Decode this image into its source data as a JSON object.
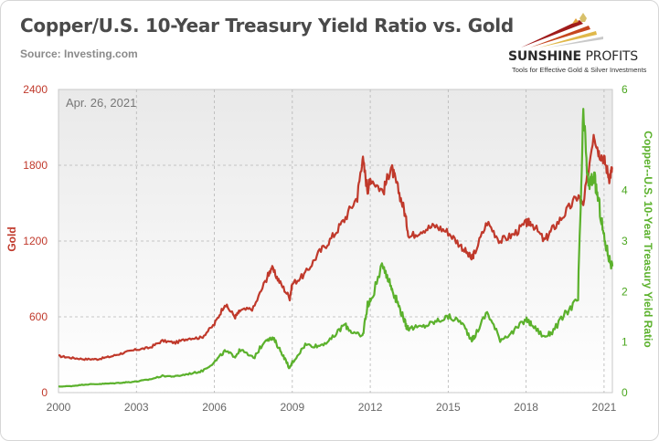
{
  "header": {
    "title": "Copper/U.S. 10-Year Treasury Yield Ratio vs. Gold",
    "source": "Source: Investing.com"
  },
  "logo": {
    "name_bold": "SUNSHINE",
    "name_thin": "PROFITS",
    "tagline": "Tools for Effective Gold & Silver Investments"
  },
  "colors": {
    "gold": "#c0392b",
    "ratio": "#5bb12c",
    "plot_bg_top": "#e9e9e9",
    "plot_bg_bottom": "#ffffff"
  },
  "chart_data": {
    "type": "line",
    "annotation": "Apr. 26, 2021",
    "xlabel": "",
    "x_ticks": [
      "2000",
      "2003",
      "2006",
      "2009",
      "2012",
      "2015",
      "2018",
      "2021"
    ],
    "xlim": [
      2000,
      2021.32
    ],
    "y_left": {
      "label": "Gold",
      "ylim": [
        0,
        2400
      ],
      "ticks": [
        "0",
        "600",
        "1200",
        "1800",
        "2400"
      ]
    },
    "y_right": {
      "label": "Copper--U.S. 10-Year Treasury Yield Ratio",
      "ylim": [
        0,
        6
      ],
      "ticks": [
        "0",
        "1",
        "2",
        "3",
        "4",
        "5",
        "6"
      ]
    },
    "grid": true,
    "series": [
      {
        "name": "Gold",
        "axis": "left",
        "points": [
          [
            2000,
            290
          ],
          [
            2000.5,
            275
          ],
          [
            2001,
            265
          ],
          [
            2001.5,
            265
          ],
          [
            2002,
            285
          ],
          [
            2002.5,
            315
          ],
          [
            2003,
            340
          ],
          [
            2003.5,
            355
          ],
          [
            2004,
            410
          ],
          [
            2004.5,
            395
          ],
          [
            2005,
            430
          ],
          [
            2005.5,
            435
          ],
          [
            2006,
            540
          ],
          [
            2006.4,
            700
          ],
          [
            2006.8,
            600
          ],
          [
            2007,
            650
          ],
          [
            2007.5,
            665
          ],
          [
            2008,
            900
          ],
          [
            2008.2,
            990
          ],
          [
            2008.5,
            880
          ],
          [
            2008.9,
            750
          ],
          [
            2009,
            860
          ],
          [
            2009.5,
            940
          ],
          [
            2010,
            1100
          ],
          [
            2010.5,
            1220
          ],
          [
            2011,
            1370
          ],
          [
            2011.5,
            1550
          ],
          [
            2011.7,
            1860
          ],
          [
            2011.9,
            1600
          ],
          [
            2012,
            1700
          ],
          [
            2012.5,
            1590
          ],
          [
            2012.8,
            1790
          ],
          [
            2013,
            1660
          ],
          [
            2013.3,
            1450
          ],
          [
            2013.5,
            1230
          ],
          [
            2014,
            1290
          ],
          [
            2014.5,
            1320
          ],
          [
            2015,
            1270
          ],
          [
            2015.5,
            1160
          ],
          [
            2015.9,
            1060
          ],
          [
            2016,
            1100
          ],
          [
            2016.5,
            1350
          ],
          [
            2017,
            1200
          ],
          [
            2017.5,
            1250
          ],
          [
            2018,
            1340
          ],
          [
            2018.2,
            1350
          ],
          [
            2018.7,
            1200
          ],
          [
            2019,
            1290
          ],
          [
            2019.5,
            1420
          ],
          [
            2020,
            1560
          ],
          [
            2020.2,
            1470
          ],
          [
            2020.6,
            2060
          ],
          [
            2020.8,
            1900
          ],
          [
            2021,
            1850
          ],
          [
            2021.2,
            1700
          ],
          [
            2021.32,
            1780
          ]
        ]
      },
      {
        "name": "Copper--U.S. 10-Year Treasury Yield Ratio",
        "axis": "right",
        "points": [
          [
            2000,
            0.12
          ],
          [
            2000.5,
            0.13
          ],
          [
            2001,
            0.16
          ],
          [
            2001.5,
            0.17
          ],
          [
            2002,
            0.18
          ],
          [
            2002.5,
            0.2
          ],
          [
            2003,
            0.22
          ],
          [
            2003.5,
            0.26
          ],
          [
            2004,
            0.33
          ],
          [
            2004.5,
            0.32
          ],
          [
            2005,
            0.37
          ],
          [
            2005.5,
            0.42
          ],
          [
            2006,
            0.6
          ],
          [
            2006.4,
            0.82
          ],
          [
            2006.8,
            0.72
          ],
          [
            2007,
            0.85
          ],
          [
            2007.5,
            0.68
          ],
          [
            2008,
            1.07
          ],
          [
            2008.3,
            1.05
          ],
          [
            2008.6,
            0.78
          ],
          [
            2008.9,
            0.48
          ],
          [
            2009,
            0.6
          ],
          [
            2009.5,
            0.95
          ],
          [
            2010,
            0.92
          ],
          [
            2010.5,
            1.05
          ],
          [
            2011,
            1.35
          ],
          [
            2011.3,
            1.2
          ],
          [
            2011.7,
            1.1
          ],
          [
            2011.9,
            1.75
          ],
          [
            2012,
            1.8
          ],
          [
            2012.5,
            2.55
          ],
          [
            2012.8,
            2.1
          ],
          [
            2013,
            1.85
          ],
          [
            2013.3,
            1.45
          ],
          [
            2013.4,
            1.3
          ],
          [
            2013.5,
            1.27
          ],
          [
            2014,
            1.3
          ],
          [
            2014.5,
            1.4
          ],
          [
            2015,
            1.5
          ],
          [
            2015.5,
            1.4
          ],
          [
            2015.9,
            1.05
          ],
          [
            2016,
            1.1
          ],
          [
            2016.5,
            1.6
          ],
          [
            2017,
            1.05
          ],
          [
            2017.5,
            1.2
          ],
          [
            2018,
            1.45
          ],
          [
            2018.2,
            1.35
          ],
          [
            2018.7,
            1.1
          ],
          [
            2019,
            1.2
          ],
          [
            2019.5,
            1.55
          ],
          [
            2020,
            1.85
          ],
          [
            2020.2,
            5.5
          ],
          [
            2020.4,
            4.05
          ],
          [
            2020.6,
            4.3
          ],
          [
            2020.8,
            3.75
          ],
          [
            2021,
            3.05
          ],
          [
            2021.2,
            2.65
          ],
          [
            2021.32,
            2.5
          ]
        ]
      }
    ]
  }
}
